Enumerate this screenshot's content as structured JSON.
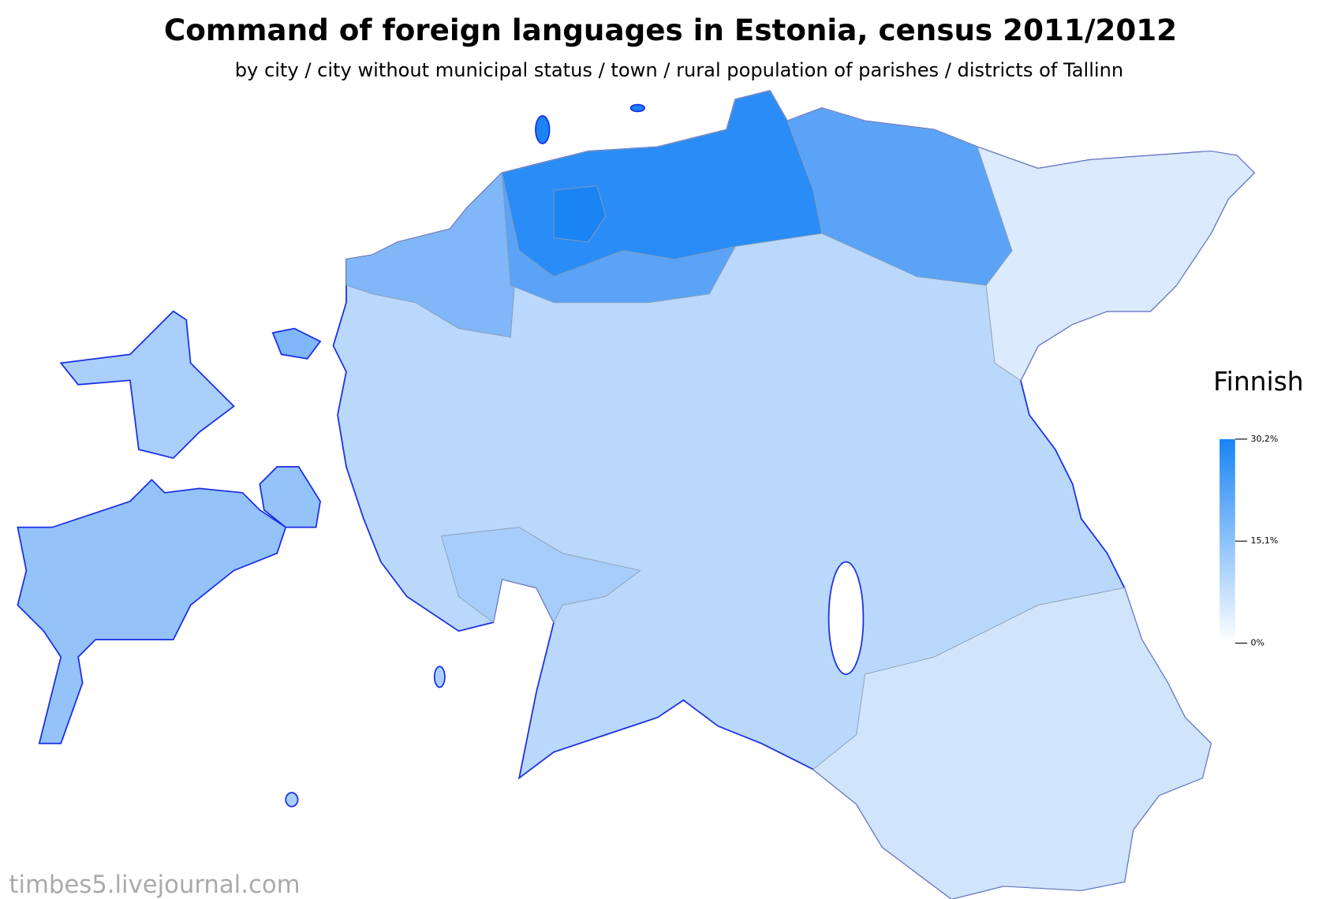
{
  "header": {
    "title": "Command of foreign languages in Estonia, census 2011/2012",
    "subtitle": "by city / city without municipal status / town / rural population of parishes / districts of Tallinn"
  },
  "legend": {
    "title": "Finnish",
    "lim": [
      0,
      30.2
    ],
    "color_low": "#ffffff",
    "color_high": "#1a84f5",
    "ticks": [
      {
        "value": 0,
        "label": "0%"
      },
      {
        "value": 15.1,
        "label": "15,1%"
      },
      {
        "value": 30.2,
        "label": "30,2%"
      }
    ]
  },
  "footer": {
    "watermark": "timbes5.livejournal.com"
  }
}
